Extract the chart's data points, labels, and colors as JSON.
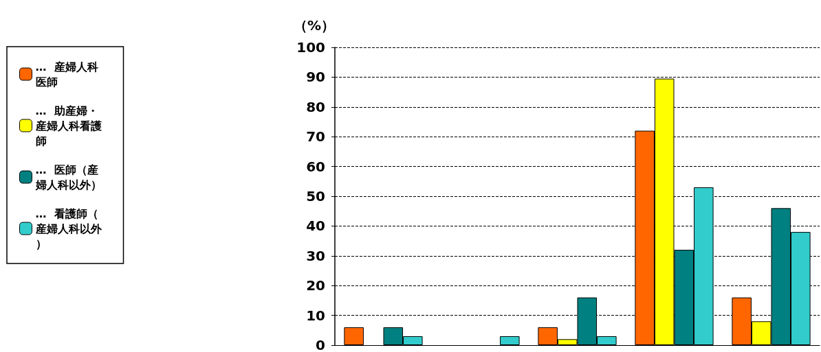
{
  "chart_data": {
    "type": "bar",
    "ylabel": "（%）",
    "categories": [
      null,
      null,
      null,
      null,
      null
    ],
    "series": [
      {
        "name": "…  産婦人科医師",
        "color": "#ff6600",
        "values": [
          6,
          0,
          6,
          72,
          16
        ]
      },
      {
        "name": "…  助産婦・産婦人科看護師",
        "color": "#ffff00",
        "values": [
          0,
          0,
          2,
          89.5,
          8
        ]
      },
      {
        "name": "…  医師（産婦人科以外）",
        "color": "#008080",
        "values": [
          6,
          0,
          16,
          32,
          46
        ]
      },
      {
        "name": "…  看護師（産婦人科以外）",
        "color": "#33cccc",
        "values": [
          3,
          3,
          3,
          53,
          38
        ]
      }
    ],
    "ylim": [
      0,
      100
    ],
    "yticks": [
      0,
      10,
      20,
      30,
      40,
      50,
      60,
      70,
      80,
      90,
      100
    ],
    "grid": "y",
    "legend": "left",
    "tick_labels": "y"
  }
}
